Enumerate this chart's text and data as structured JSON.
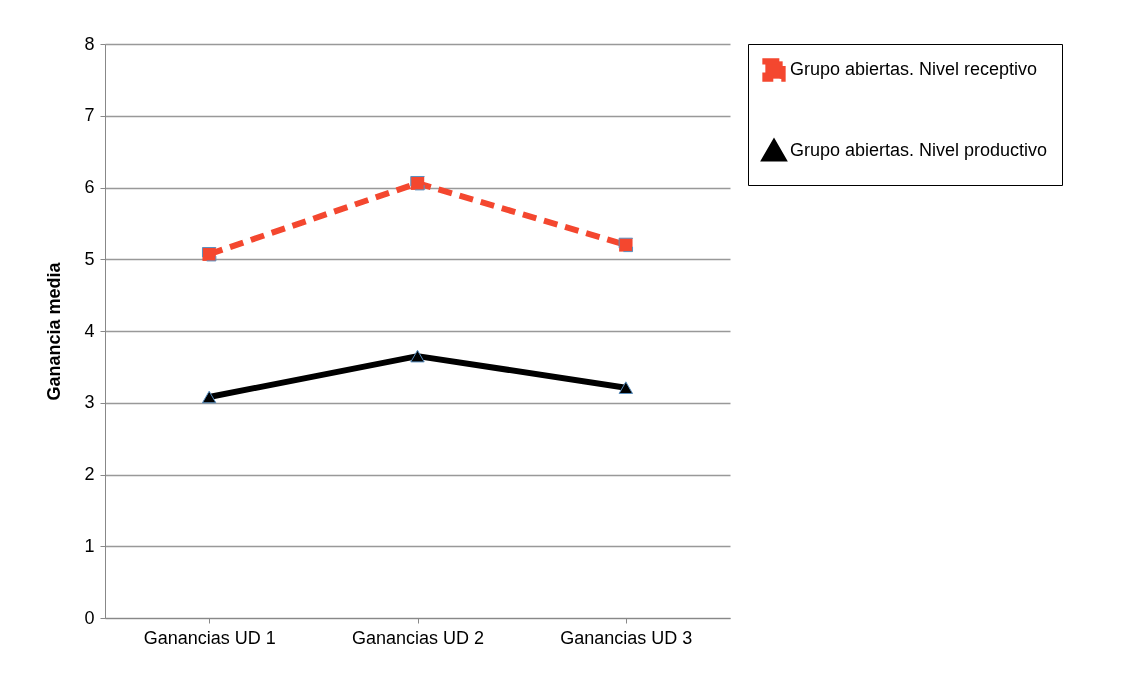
{
  "chart_data": {
    "type": "line",
    "ylabel": "Ganancia media",
    "categories": [
      "Ganancias UD 1",
      "Ganancias UD 2",
      "Ganancias UD 3"
    ],
    "series": [
      {
        "name": "Grupo abiertas. Nivel receptivo",
        "color": "#f4472f",
        "line_style": "dashed",
        "marker": "square",
        "values": [
          5.07,
          6.06,
          5.2
        ]
      },
      {
        "name": "Grupo abiertas. Nivel productivo",
        "color": "#000000",
        "line_style": "solid",
        "marker": "triangle",
        "values": [
          3.08,
          3.65,
          3.21
        ]
      }
    ],
    "ylim": [
      0,
      8
    ],
    "yticks": [
      0,
      1,
      2,
      3,
      4,
      5,
      6,
      7,
      8
    ],
    "grid": "y",
    "legend": "right"
  }
}
